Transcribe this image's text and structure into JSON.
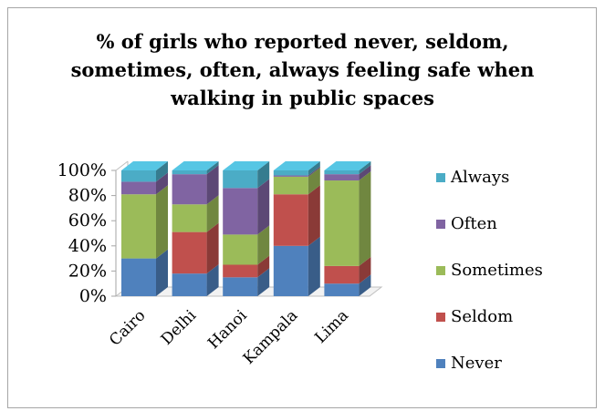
{
  "chart_data": {
    "type": "bar",
    "stacked": true,
    "three_d": true,
    "title": "% of girls who reported never, seldom,\nsometimes, often, always feeling safe when\nwalking in public spaces",
    "xlabel": "",
    "ylabel": "",
    "ylim": [
      0,
      100
    ],
    "yticks": [
      "0%",
      "20%",
      "40%",
      "60%",
      "80%",
      "100%"
    ],
    "categories": [
      "Cairo",
      "Delhi",
      "Hanoi",
      "Kampala",
      "Lima"
    ],
    "series": [
      {
        "name": "Never",
        "color": "#4f81bd",
        "values": [
          30,
          18,
          15,
          40,
          10
        ]
      },
      {
        "name": "Seldom",
        "color": "#c0504d",
        "values": [
          0,
          33,
          10,
          41,
          14
        ]
      },
      {
        "name": "Sometimes",
        "color": "#9bbb59",
        "values": [
          51,
          22,
          24,
          14,
          68
        ]
      },
      {
        "name": "Often",
        "color": "#8064a2",
        "values": [
          10,
          24,
          37,
          1,
          5
        ]
      },
      {
        "name": "Always",
        "color": "#4bacc6",
        "values": [
          9,
          3,
          14,
          4,
          3
        ]
      }
    ],
    "legend_position": "right",
    "grid": false
  }
}
